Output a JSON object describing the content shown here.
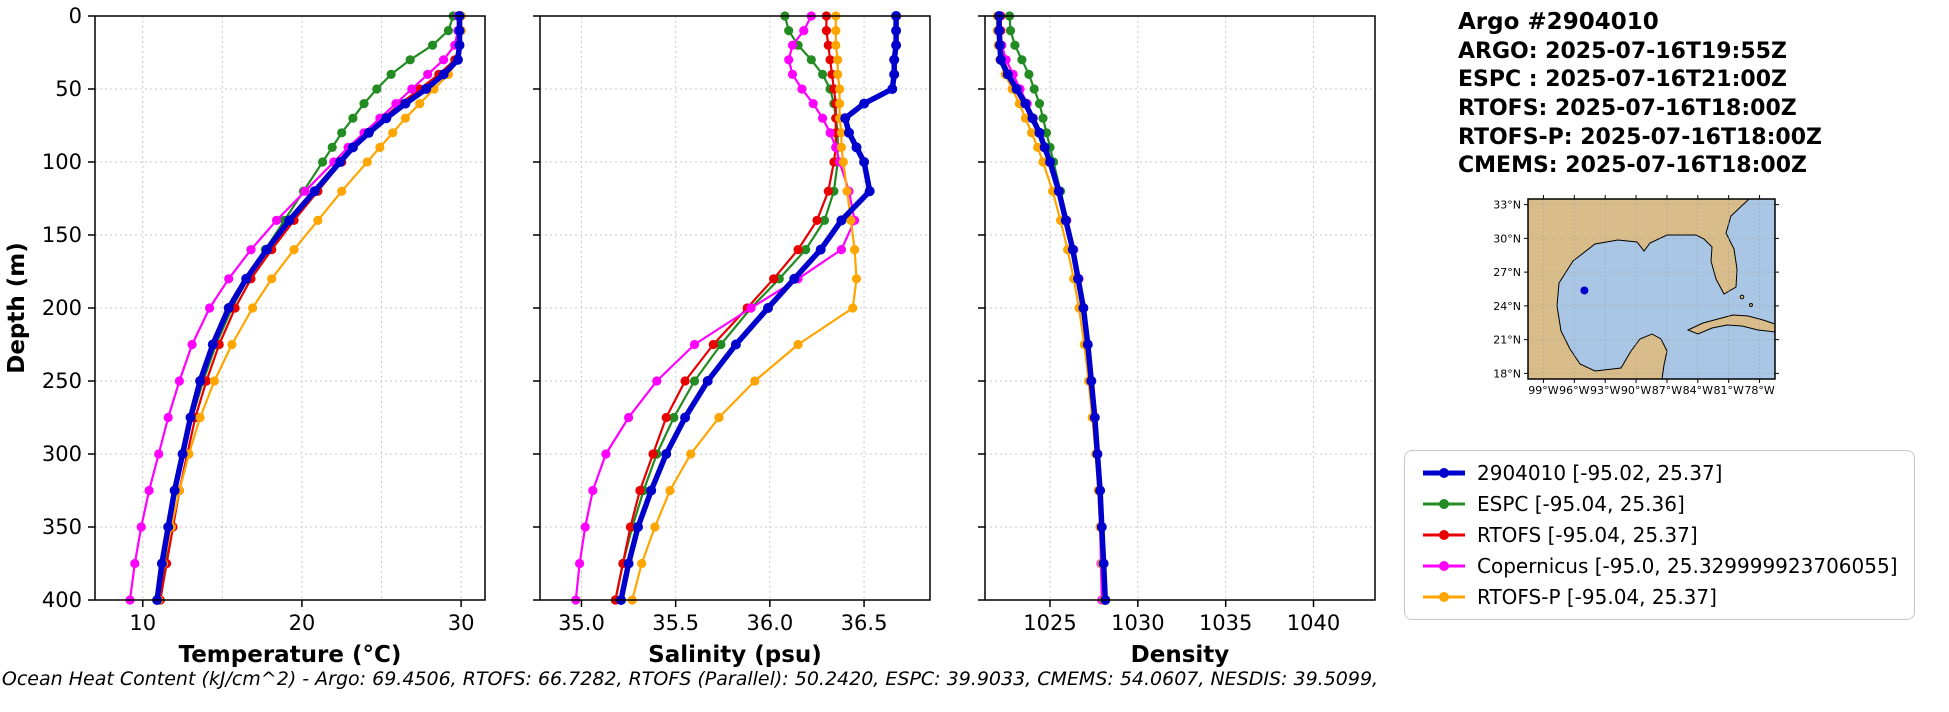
{
  "info": {
    "title": "Argo #2904010",
    "lines": [
      "ARGO: 2025-07-16T19:55Z",
      "ESPC : 2025-07-16T21:00Z",
      "RTOFS: 2025-07-16T18:00Z",
      "RTOFS-P: 2025-07-16T18:00Z",
      "CMEMS: 2025-07-16T18:00Z"
    ]
  },
  "map": {
    "lon_range": [
      -100.5,
      -76.5
    ],
    "lat_range": [
      17.5,
      33.5
    ],
    "lon_ticks": [
      -99,
      -96,
      -93,
      -90,
      -87,
      -84,
      -81,
      -78
    ],
    "lon_tick_labels": [
      "99°W",
      "96°W",
      "93°W",
      "90°W",
      "87°W",
      "84°W",
      "81°W",
      "78°W"
    ],
    "lat_ticks": [
      33,
      30,
      27,
      24,
      21,
      18
    ],
    "lat_tick_labels": [
      "33°N",
      "30°N",
      "27°N",
      "24°N",
      "21°N",
      "18°N"
    ],
    "marker": {
      "lon": -95.02,
      "lat": 25.37,
      "color": "#0000cd"
    },
    "land_color": "#d8bc8a",
    "water_color": "#a9c6e4"
  },
  "legend": {
    "position": "lower right of figure",
    "entries": [
      {
        "key": "2904010",
        "label": "2904010 [-95.02, 25.37]",
        "color": "#0000cd",
        "thick": true
      },
      {
        "key": "espc",
        "label": "ESPC [-95.04, 25.36]",
        "color": "#228b22",
        "thick": false
      },
      {
        "key": "rtofs",
        "label": "RTOFS [-95.04, 25.37]",
        "color": "#e60000",
        "thick": false
      },
      {
        "key": "copernicus",
        "label": "Copernicus [-95.0, 25.329999923706055]",
        "color": "#ff00ff",
        "thick": false
      },
      {
        "key": "rtofs-p",
        "label": "RTOFS-P [-95.04, 25.37]",
        "color": "#ffa500",
        "thick": false
      }
    ]
  },
  "footer": {
    "text": "Ocean Heat Content (kJ/cm^2) - Argo: 69.4506,  RTOFS: 66.7282,  RTOFS (Parallel): 50.2420,  ESPC: 39.9033,  CMEMS: 54.0607,  NESDIS: 39.5099,"
  },
  "chart_data": [
    {
      "id": "temperature",
      "type": "line",
      "orientation": "vertical-profile",
      "xlabel": "Temperature (°C)",
      "ylabel": "Depth (m)",
      "grid": true,
      "xlim": [
        7.0,
        31.5
      ],
      "xticks": [
        10,
        20,
        30
      ],
      "xtick_labels": [
        "10",
        "20",
        "30"
      ],
      "xgrid": [
        10,
        15,
        20,
        25,
        30
      ],
      "ylim": [
        0,
        400
      ],
      "yticks": [
        0,
        50,
        100,
        150,
        200,
        250,
        300,
        350,
        400
      ],
      "depths": [
        0,
        10,
        20,
        30,
        40,
        50,
        60,
        70,
        80,
        90,
        100,
        120,
        140,
        160,
        180,
        200,
        225,
        250,
        275,
        300,
        325,
        350,
        375,
        400
      ],
      "series": [
        {
          "name": "2904010",
          "color": "#0000cd",
          "lw": 5.5,
          "marker": 5,
          "values": [
            29.9,
            29.9,
            29.9,
            29.8,
            28.9,
            27.8,
            26.5,
            25.3,
            24.2,
            23.2,
            22.4,
            20.8,
            19.2,
            17.8,
            16.5,
            15.4,
            14.4,
            13.6,
            13.0,
            12.5,
            12.0,
            11.6,
            11.2,
            10.9
          ]
        },
        {
          "name": "ESPC",
          "color": "#228b22",
          "lw": 2.2,
          "marker": 4.6,
          "values": [
            29.5,
            29.2,
            28.2,
            26.8,
            25.6,
            24.7,
            23.9,
            23.2,
            22.5,
            21.9,
            21.3,
            20.1,
            18.9,
            17.7,
            16.6,
            15.6,
            14.6,
            13.8,
            13.1,
            12.5,
            12.1,
            11.7,
            11.4,
            11.1
          ]
        },
        {
          "name": "RTOFS",
          "color": "#e60000",
          "lw": 2.2,
          "marker": 4.6,
          "values": [
            30.0,
            30.0,
            29.9,
            29.6,
            28.6,
            27.4,
            26.2,
            25.1,
            24.1,
            23.2,
            22.5,
            21.0,
            19.5,
            18.1,
            16.8,
            15.8,
            14.8,
            14.0,
            13.3,
            12.8,
            12.3,
            11.9,
            11.5,
            11.1
          ]
        },
        {
          "name": "Copernicus",
          "color": "#ff00ff",
          "lw": 2.2,
          "marker": 4.6,
          "values": [
            29.8,
            29.8,
            29.6,
            28.9,
            27.9,
            26.9,
            25.9,
            24.9,
            23.9,
            22.9,
            22.0,
            20.2,
            18.4,
            16.8,
            15.4,
            14.2,
            13.1,
            12.3,
            11.6,
            11.0,
            10.4,
            9.9,
            9.5,
            9.2
          ]
        },
        {
          "name": "RTOFS-P",
          "color": "#ffa500",
          "lw": 2.2,
          "marker": 4.6,
          "values": [
            30.0,
            30.0,
            29.9,
            29.8,
            29.2,
            28.3,
            27.4,
            26.5,
            25.7,
            24.9,
            24.1,
            22.5,
            21.0,
            19.5,
            18.1,
            16.9,
            15.6,
            14.5,
            13.6,
            12.9,
            12.3,
            11.8,
            11.3,
            11.0
          ]
        }
      ]
    },
    {
      "id": "salinity",
      "type": "line",
      "orientation": "vertical-profile",
      "xlabel": "Salinity (psu)",
      "ylabel": "",
      "grid": true,
      "xlim": [
        34.78,
        36.85
      ],
      "xticks": [
        35.0,
        35.5,
        36.0,
        36.5
      ],
      "xtick_labels": [
        "35.0",
        "35.5",
        "36.0",
        "36.5"
      ],
      "xgrid": [
        35.0,
        35.5,
        36.0,
        36.5
      ],
      "ylim": [
        0,
        400
      ],
      "yticks": [
        0,
        50,
        100,
        150,
        200,
        250,
        300,
        350,
        400
      ],
      "depths": [
        0,
        10,
        20,
        30,
        40,
        50,
        60,
        70,
        80,
        90,
        100,
        120,
        140,
        160,
        180,
        200,
        225,
        250,
        275,
        300,
        325,
        350,
        375,
        400
      ],
      "series": [
        {
          "name": "2904010",
          "color": "#0000cd",
          "lw": 5.5,
          "marker": 5,
          "values": [
            36.67,
            36.67,
            36.67,
            36.66,
            36.66,
            36.65,
            36.5,
            36.4,
            36.42,
            36.46,
            36.5,
            36.53,
            36.38,
            36.27,
            36.13,
            35.99,
            35.82,
            35.67,
            35.55,
            35.45,
            35.37,
            35.3,
            35.25,
            35.21
          ]
        },
        {
          "name": "ESPC",
          "color": "#228b22",
          "lw": 2.2,
          "marker": 4.6,
          "values": [
            36.08,
            36.1,
            36.15,
            36.22,
            36.28,
            36.32,
            36.34,
            36.35,
            36.36,
            36.36,
            36.36,
            36.34,
            36.29,
            36.19,
            36.05,
            35.9,
            35.74,
            35.6,
            35.49,
            35.4,
            35.33,
            35.27,
            35.22,
            35.18
          ]
        },
        {
          "name": "RTOFS",
          "color": "#e60000",
          "lw": 2.2,
          "marker": 4.6,
          "values": [
            36.3,
            36.3,
            36.31,
            36.32,
            36.33,
            36.34,
            36.35,
            36.35,
            36.35,
            36.35,
            36.34,
            36.31,
            36.25,
            36.15,
            36.02,
            35.88,
            35.7,
            35.55,
            35.45,
            35.38,
            35.31,
            35.26,
            35.22,
            35.18
          ]
        },
        {
          "name": "Copernicus",
          "color": "#ff00ff",
          "lw": 2.2,
          "marker": 4.6,
          "values": [
            36.22,
            36.18,
            36.12,
            36.1,
            36.12,
            36.17,
            36.23,
            36.28,
            36.32,
            36.35,
            36.37,
            36.42,
            36.45,
            36.38,
            36.15,
            35.9,
            35.6,
            35.4,
            35.25,
            35.13,
            35.06,
            35.02,
            34.99,
            34.97
          ]
        },
        {
          "name": "RTOFS-P",
          "color": "#ffa500",
          "lw": 2.2,
          "marker": 4.6,
          "values": [
            36.35,
            36.35,
            36.35,
            36.36,
            36.36,
            36.37,
            36.37,
            36.37,
            36.38,
            36.38,
            36.39,
            36.41,
            36.43,
            36.45,
            36.46,
            36.44,
            36.15,
            35.92,
            35.73,
            35.58,
            35.47,
            35.39,
            35.32,
            35.27
          ]
        }
      ]
    },
    {
      "id": "density",
      "type": "line",
      "orientation": "vertical-profile",
      "xlabel": "Density",
      "ylabel": "",
      "grid": true,
      "xlim": [
        1021.3,
        1043.5
      ],
      "xticks": [
        1025,
        1030,
        1035,
        1040
      ],
      "xtick_labels": [
        "1025",
        "1030",
        "1035",
        "1040"
      ],
      "xgrid": [
        1025,
        1030,
        1035,
        1040
      ],
      "ylim": [
        0,
        400
      ],
      "yticks": [
        0,
        50,
        100,
        150,
        200,
        250,
        300,
        350,
        400
      ],
      "depths": [
        0,
        10,
        20,
        30,
        40,
        50,
        60,
        70,
        80,
        90,
        100,
        120,
        140,
        160,
        180,
        200,
        225,
        250,
        275,
        300,
        325,
        350,
        375,
        400
      ],
      "series": [
        {
          "name": "2904010",
          "color": "#0000cd",
          "lw": 5.5,
          "marker": 5,
          "values": [
            1022.1,
            1022.1,
            1022.15,
            1022.2,
            1022.6,
            1023.1,
            1023.6,
            1024.0,
            1024.4,
            1024.7,
            1025.0,
            1025.5,
            1025.9,
            1026.3,
            1026.6,
            1026.9,
            1027.15,
            1027.35,
            1027.55,
            1027.7,
            1027.85,
            1027.95,
            1028.05,
            1028.15
          ]
        },
        {
          "name": "ESPC",
          "color": "#228b22",
          "lw": 2.2,
          "marker": 4.6,
          "values": [
            1022.7,
            1022.75,
            1023.0,
            1023.4,
            1023.8,
            1024.1,
            1024.4,
            1024.6,
            1024.8,
            1025.0,
            1025.2,
            1025.6,
            1025.95,
            1026.3,
            1026.6,
            1026.85,
            1027.1,
            1027.3,
            1027.5,
            1027.65,
            1027.8,
            1027.9,
            1028.0,
            1028.1
          ]
        },
        {
          "name": "RTOFS",
          "color": "#e60000",
          "lw": 2.2,
          "marker": 4.6,
          "values": [
            1022.2,
            1022.2,
            1022.25,
            1022.35,
            1022.7,
            1023.15,
            1023.6,
            1024.0,
            1024.35,
            1024.65,
            1024.95,
            1025.45,
            1025.85,
            1026.25,
            1026.55,
            1026.85,
            1027.1,
            1027.3,
            1027.5,
            1027.65,
            1027.8,
            1027.9,
            1028.0,
            1028.1
          ]
        },
        {
          "name": "Copernicus",
          "color": "#ff00ff",
          "lw": 2.2,
          "marker": 4.6,
          "values": [
            1022.15,
            1022.15,
            1022.25,
            1022.5,
            1022.9,
            1023.3,
            1023.7,
            1024.05,
            1024.4,
            1024.7,
            1025.0,
            1025.5,
            1025.95,
            1026.35,
            1026.65,
            1026.9,
            1027.15,
            1027.35,
            1027.5,
            1027.65,
            1027.75,
            1027.85,
            1027.9,
            1027.95
          ]
        },
        {
          "name": "RTOFS-P",
          "color": "#ffa500",
          "lw": 2.2,
          "marker": 4.6,
          "values": [
            1022.0,
            1022.0,
            1022.05,
            1022.15,
            1022.45,
            1022.85,
            1023.25,
            1023.6,
            1023.95,
            1024.3,
            1024.6,
            1025.15,
            1025.6,
            1026.0,
            1026.35,
            1026.65,
            1026.95,
            1027.2,
            1027.4,
            1027.6,
            1027.75,
            1027.85,
            1027.95,
            1028.05
          ]
        }
      ]
    }
  ]
}
